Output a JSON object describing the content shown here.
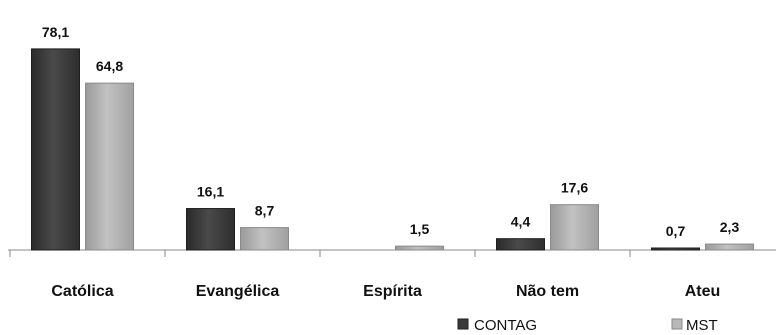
{
  "chart_data": {
    "type": "bar",
    "categories": [
      "Católica",
      "Evangélica",
      "Espírita",
      "Não tem",
      "Ateu"
    ],
    "series": [
      {
        "name": "CONTAG",
        "values": [
          78.1,
          16.1,
          null,
          4.4,
          0.7
        ],
        "labels": [
          "78,1",
          "16,1",
          "",
          "4,4",
          "0,7"
        ]
      },
      {
        "name": "MST",
        "values": [
          64.8,
          8.7,
          1.5,
          17.6,
          2.3
        ],
        "labels": [
          "64,8",
          "8,7",
          "1,5",
          "17,6",
          "2,3"
        ]
      }
    ],
    "title": "",
    "xlabel": "",
    "ylabel": "",
    "ylim": [
      0,
      80
    ],
    "grid": false,
    "legend_position": "bottom-right",
    "colors": {
      "CONTAG": "#3a3a3a",
      "MST": "#a9a9a9",
      "axis": "#888888"
    }
  }
}
